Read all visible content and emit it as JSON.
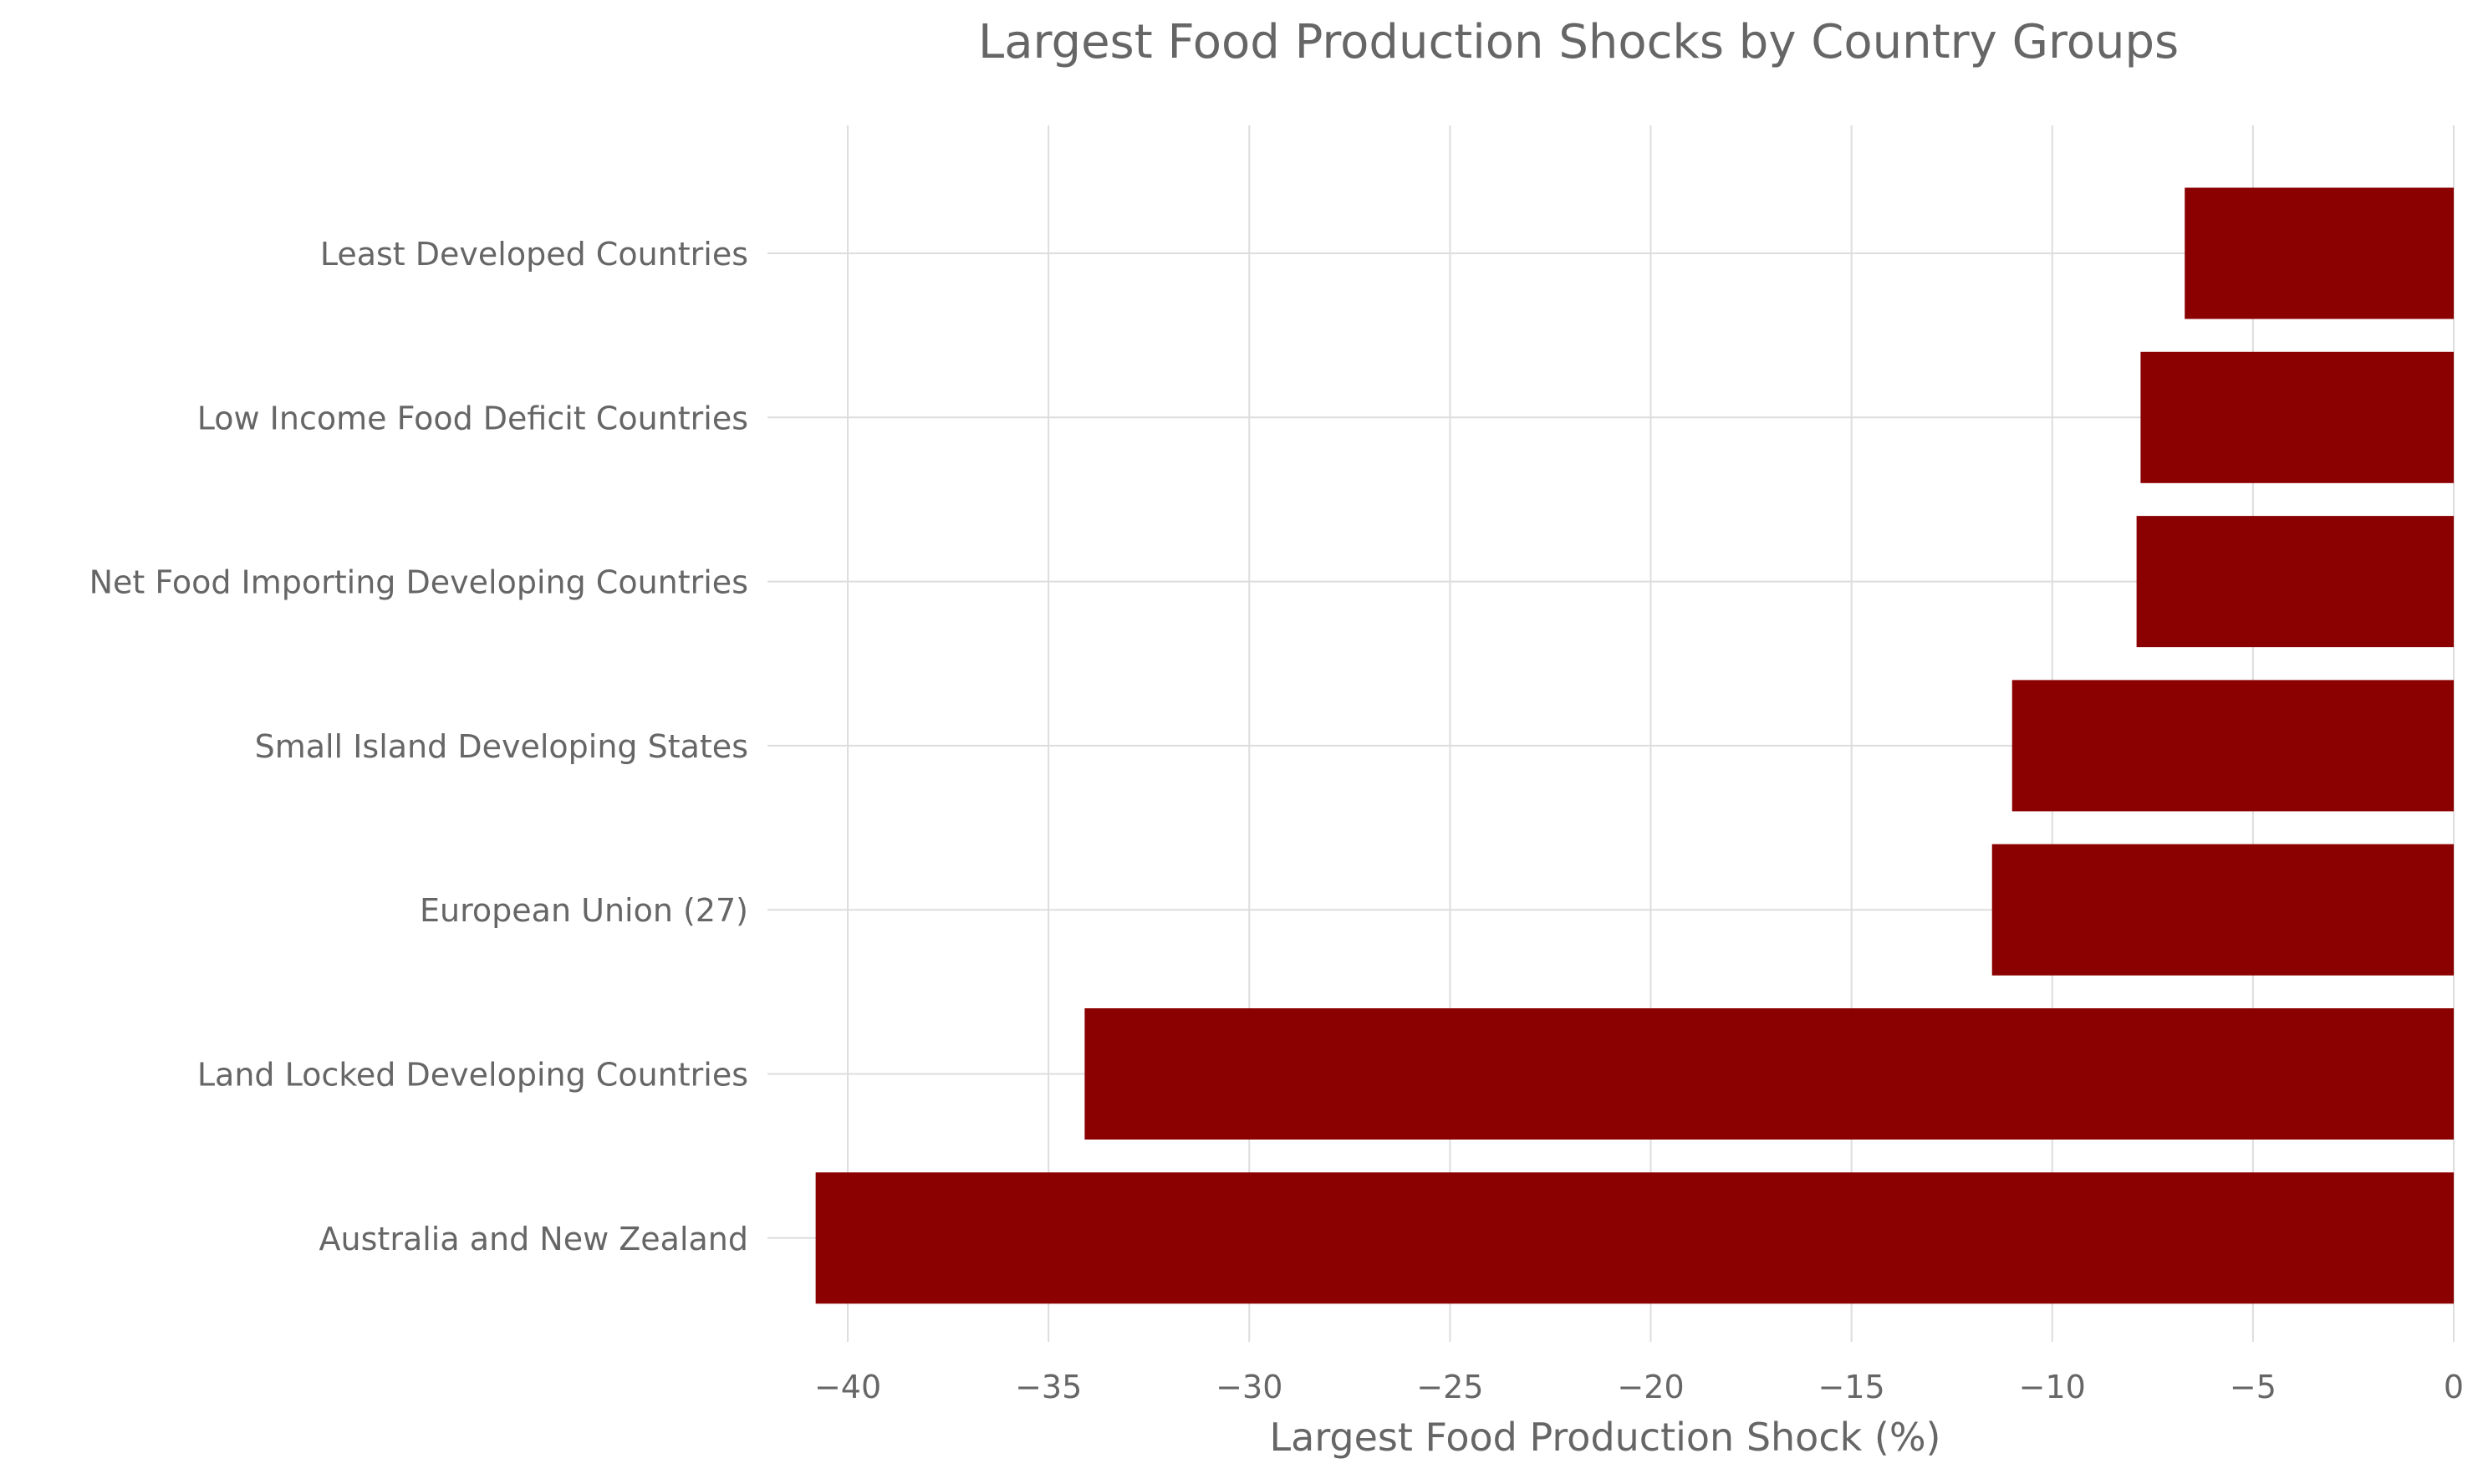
{
  "chart_data": {
    "type": "bar",
    "orientation": "horizontal",
    "title": "Largest Food Production Shocks by Country Groups",
    "xlabel": "Largest Food Production Shock (%)",
    "ylabel": "",
    "xlim": [
      -42,
      0
    ],
    "xticks": [
      -40,
      -35,
      -30,
      -25,
      -20,
      -15,
      -10,
      -5,
      0
    ],
    "xtick_labels": [
      "−40",
      "−35",
      "−30",
      "−25",
      "−20",
      "−15",
      "−10",
      "−5",
      "0"
    ],
    "grid": true,
    "bar_color": "#8b0000",
    "categories": [
      "Least Developed Countries",
      "Low Income Food Deficit Countries",
      "Net Food Importing Developing Countries",
      "Small Island Developing States",
      "European Union (27)",
      "Land Locked Developing Countries",
      "Australia and New Zealand"
    ],
    "values": [
      -6.7,
      -7.8,
      -7.9,
      -11.0,
      -11.5,
      -34.1,
      -40.8
    ]
  }
}
